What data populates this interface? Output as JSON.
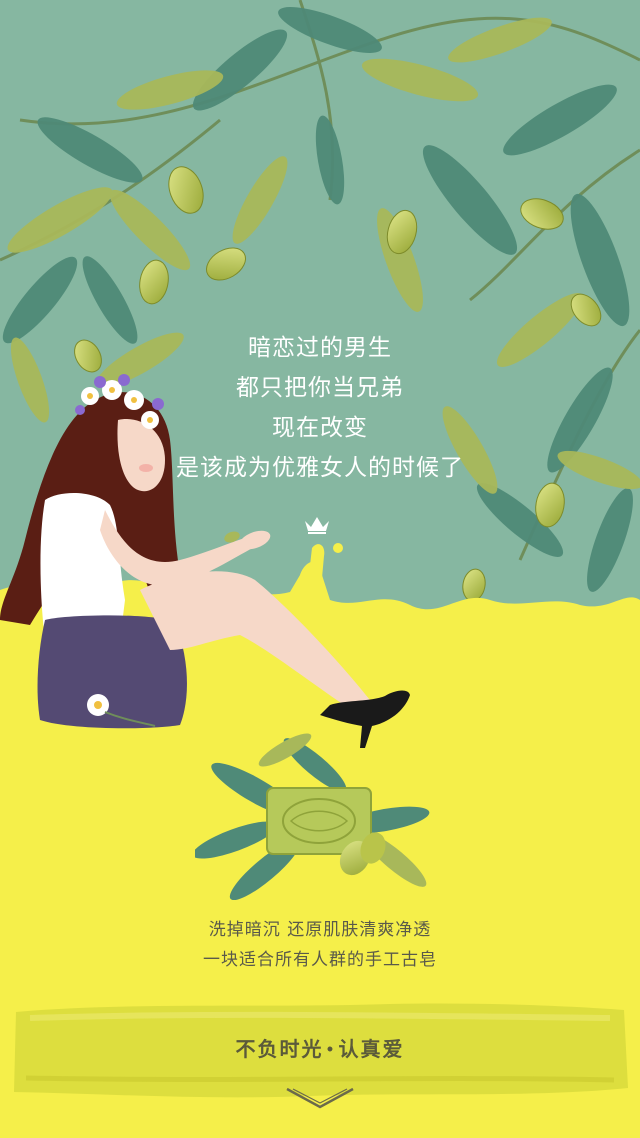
{
  "colors": {
    "sky": "#86b7a1",
    "background_yellow": "#f5ef4a",
    "leaf_dark": "#4f8a78",
    "leaf_light": "#a8b85a",
    "olive": "#b9c44a",
    "text_dark": "#5a5a4a"
  },
  "poem": {
    "line1": "暗恋过的男生",
    "line2": "都只把你当兄弟",
    "line3": "现在改变",
    "line4": "是该成为优雅女人的时候了"
  },
  "description": {
    "line1": "洗掉暗沉  还原肌肤清爽净透",
    "line2": "一块适合所有人群的手工古皂"
  },
  "slogan": {
    "left": "不负时光",
    "separator": "•",
    "right": "认真爱"
  },
  "icons": {
    "crown": "crown-icon",
    "scroll_down": "chevron-down-icon"
  }
}
